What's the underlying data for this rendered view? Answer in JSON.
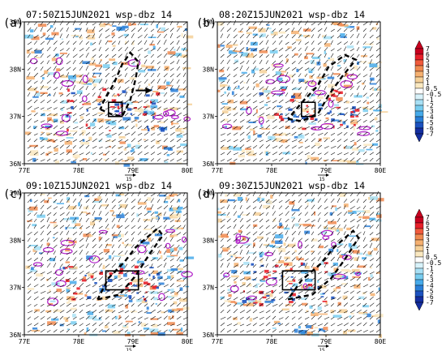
{
  "chart_data": {
    "type": "heatmap",
    "panels": [
      {
        "label": "(a)",
        "title": "07:50Z15JUN2021 wsp-dbz 14",
        "xticks": [
          "77E",
          "78E",
          "79E",
          "80E"
        ],
        "yticks": [
          "39N",
          "38N",
          "37N",
          "36N"
        ],
        "xlim": [
          77,
          80
        ],
        "ylim": [
          36,
          39
        ],
        "ref_vector_label": "15",
        "analysis_box": {
          "lon": [
            78.55,
            78.8
          ],
          "lat": [
            37.0,
            37.3
          ]
        },
        "dashed_outline": [
          [
            78.4,
            37.15
          ],
          [
            78.6,
            37.05
          ],
          [
            78.8,
            37.0
          ],
          [
            78.95,
            37.35
          ],
          [
            79.05,
            37.8
          ],
          [
            79.1,
            38.15
          ],
          [
            78.95,
            38.35
          ],
          [
            78.8,
            38.1
          ],
          [
            78.65,
            37.7
          ],
          [
            78.45,
            37.3
          ],
          [
            78.4,
            37.15
          ]
        ],
        "arrow": {
          "from": [
            79.05,
            37.55
          ],
          "to": [
            79.35,
            37.55
          ]
        },
        "arrow_label": "",
        "seed": 11
      },
      {
        "label": "(b)",
        "title": "08:20Z15JUN2021 wsp-dbz 14",
        "xticks": [
          "77E",
          "78E",
          "79E",
          "80E"
        ],
        "yticks": [
          "39N",
          "38N",
          "37N",
          "36N"
        ],
        "xlim": [
          77,
          80
        ],
        "ylim": [
          36,
          39
        ],
        "ref_vector_label": "15",
        "analysis_box": {
          "lon": [
            78.55,
            78.8
          ],
          "lat": [
            37.0,
            37.3
          ]
        },
        "dashed_outline": [
          [
            78.3,
            36.95
          ],
          [
            78.55,
            36.9
          ],
          [
            78.85,
            37.05
          ],
          [
            79.05,
            37.45
          ],
          [
            79.3,
            37.85
          ],
          [
            79.55,
            38.2
          ],
          [
            79.35,
            38.3
          ],
          [
            79.05,
            38.05
          ],
          [
            78.85,
            37.65
          ],
          [
            78.6,
            37.35
          ],
          [
            78.3,
            36.95
          ]
        ],
        "seed": 23
      },
      {
        "label": "(c)",
        "title": "09:10Z15JUN2021 wsp-dbz 14",
        "xticks": [
          "77E",
          "78E",
          "79E",
          "80E"
        ],
        "yticks": [
          "39N",
          "38N",
          "37N",
          "36N"
        ],
        "xlim": [
          77,
          80
        ],
        "ylim": [
          36,
          39
        ],
        "ref_vector_label": "15",
        "analysis_box": {
          "lon": [
            78.5,
            79.1
          ],
          "lat": [
            36.95,
            37.35
          ]
        },
        "dashed_outline": [
          [
            78.35,
            36.75
          ],
          [
            78.75,
            36.85
          ],
          [
            79.05,
            37.25
          ],
          [
            79.3,
            37.7
          ],
          [
            79.55,
            38.1
          ],
          [
            79.45,
            38.25
          ],
          [
            79.05,
            37.85
          ],
          [
            78.85,
            37.55
          ],
          [
            78.55,
            37.2
          ],
          [
            78.35,
            36.75
          ]
        ],
        "seed": 37
      },
      {
        "label": "(d)",
        "title": "09:30Z15JUN2021 wsp-dbz 14",
        "xticks": [
          "77E",
          "78E",
          "79E",
          "80E"
        ],
        "yticks": [
          "39N",
          "38N",
          "37N",
          "36N"
        ],
        "xlim": [
          77,
          80
        ],
        "ylim": [
          36,
          39
        ],
        "ref_vector_label": "15",
        "analysis_box": {
          "lon": [
            78.2,
            78.8
          ],
          "lat": [
            36.95,
            37.35
          ]
        },
        "dashed_outline": [
          [
            78.3,
            36.75
          ],
          [
            78.75,
            36.85
          ],
          [
            79.1,
            37.2
          ],
          [
            79.35,
            37.6
          ],
          [
            79.6,
            38.05
          ],
          [
            79.5,
            38.2
          ],
          [
            79.15,
            37.85
          ],
          [
            78.9,
            37.5
          ],
          [
            78.55,
            37.15
          ],
          [
            78.3,
            36.75
          ]
        ],
        "seed": 53
      }
    ],
    "colorbar": {
      "levels": [
        "7",
        "6",
        "5",
        "4",
        "3",
        "2",
        "1",
        "0.5",
        "-0.5",
        "-1",
        "-2",
        "-3",
        "-4",
        "-5",
        "-6",
        "-7"
      ],
      "colors": [
        "#c8001e",
        "#e8202a",
        "#f05a3c",
        "#f08a50",
        "#f5b070",
        "#f5d098",
        "#fae8c0",
        "#ffffff",
        "#d8f2fa",
        "#a8e0f5",
        "#78cdf0",
        "#46aaea",
        "#2a7fd8",
        "#1c52c0",
        "#142ea0"
      ]
    },
    "colorbar_instances": 2
  }
}
